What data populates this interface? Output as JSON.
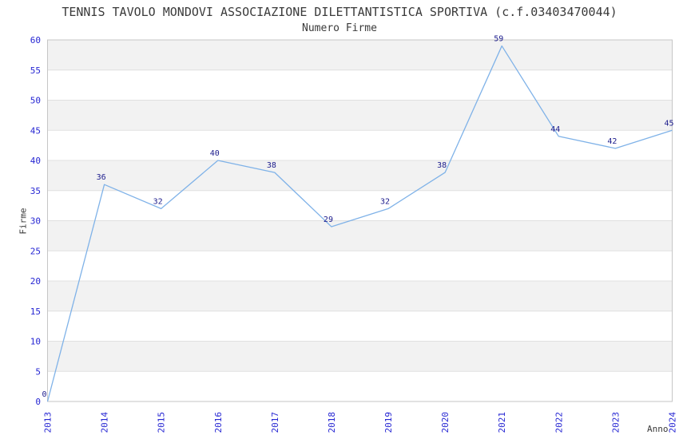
{
  "chart_data": {
    "type": "line",
    "title": "TENNIS TAVOLO MONDOVI ASSOCIAZIONE DILETTANTISTICA SPORTIVA (c.f.03403470044)",
    "subtitle": "Numero Firme",
    "xlabel": "Anno",
    "ylabel": "Firme",
    "categories": [
      "2013",
      "2014",
      "2015",
      "2016",
      "2017",
      "2018",
      "2019",
      "2020",
      "2021",
      "2022",
      "2023",
      "2024"
    ],
    "values": [
      0,
      36,
      32,
      40,
      38,
      29,
      32,
      38,
      59,
      44,
      42,
      45
    ],
    "ylim": [
      0,
      60
    ],
    "ytick_step": 5,
    "yticks": [
      0,
      5,
      10,
      15,
      20,
      25,
      30,
      35,
      40,
      45,
      50,
      55,
      60
    ],
    "legend": "none",
    "grid": "horizontal gridlines every 5 units with alternating shaded bands",
    "x_tick_rotation": -90,
    "data_labels_visible": true,
    "colors": {
      "line": "#7fb2e8",
      "tick_label": "#2626d3",
      "data_label": "#1b1b8c",
      "text": "#3a3a3a",
      "band": "#f2f2f2",
      "gridline": "#e0e0e0",
      "border": "#c6c6c6",
      "background": "#ffffff"
    }
  }
}
